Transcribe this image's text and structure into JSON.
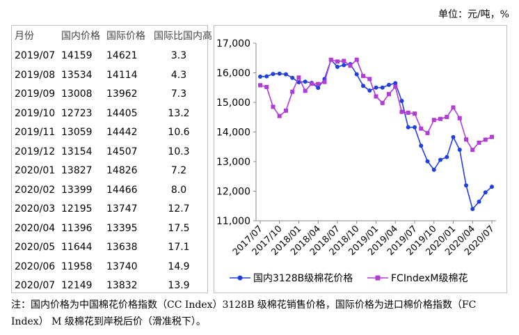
{
  "unit_label": "单位：元/吨，%",
  "table": {
    "headers": [
      "月份",
      "国内价格",
      "国际价格",
      "国际比国内高"
    ],
    "rows": [
      [
        "2019/07",
        "14159",
        "14621",
        "3.3"
      ],
      [
        "2019/08",
        "13534",
        "14114",
        "4.3"
      ],
      [
        "2019/09",
        "13008",
        "13962",
        "7.3"
      ],
      [
        "2019/10",
        "12723",
        "14405",
        "13.2"
      ],
      [
        "2019/11",
        "13059",
        "14442",
        "10.6"
      ],
      [
        "2019/12",
        "13154",
        "14507",
        "10.3"
      ],
      [
        "2020/01",
        "13827",
        "14826",
        "7.2"
      ],
      [
        "2020/02",
        "13399",
        "14466",
        "8.0"
      ],
      [
        "2020/03",
        "12195",
        "13747",
        "12.7"
      ],
      [
        "2020/04",
        "11396",
        "13395",
        "17.5"
      ],
      [
        "2020/05",
        "11644",
        "13638",
        "17.1"
      ],
      [
        "2020/06",
        "11958",
        "13740",
        "14.9"
      ],
      [
        "2020/07",
        "12149",
        "13832",
        "13.9"
      ]
    ]
  },
  "chart_data": {
    "type": "line",
    "x": [
      "2017/07",
      "2017/08",
      "2017/09",
      "2017/10",
      "2017/11",
      "2017/12",
      "2018/01",
      "2018/02",
      "2018/03",
      "2018/04",
      "2018/05",
      "2018/06",
      "2018/07",
      "2018/08",
      "2018/09",
      "2018/10",
      "2018/11",
      "2018/12",
      "2019/01",
      "2019/02",
      "2019/03",
      "2019/04",
      "2019/05",
      "2019/06",
      "2019/07",
      "2019/08",
      "2019/09",
      "2019/10",
      "2019/11",
      "2019/12",
      "2020/01",
      "2020/02",
      "2020/03",
      "2020/04",
      "2020/05",
      "2020/06",
      "2020/07"
    ],
    "xticks": [
      "2017/07",
      "2017/10",
      "2018/01",
      "2018/04",
      "2018/07",
      "2018/10",
      "2019/01",
      "2019/04",
      "2019/07",
      "2019/10",
      "2020/01",
      "2020/04",
      "2020/07"
    ],
    "yticks": [
      "11,000",
      "12,000",
      "13,000",
      "14,000",
      "15,000",
      "16,000",
      "17,000"
    ],
    "ylim": [
      11000,
      17000
    ],
    "series": [
      {
        "name": "国内3128B级棉花价格",
        "color": "#1f3fe0",
        "marker": "circle",
        "values": [
          15870,
          15880,
          15960,
          15970,
          15950,
          15830,
          15680,
          15700,
          15660,
          15490,
          15790,
          16440,
          16200,
          16260,
          16290,
          15950,
          15560,
          15400,
          15500,
          15500,
          15590,
          15650,
          15050,
          14160,
          14159,
          13534,
          13008,
          12723,
          13059,
          13154,
          13827,
          13399,
          12195,
          11396,
          11644,
          11958,
          12149
        ]
      },
      {
        "name": "FCIndexM级棉花",
        "color": "#b23cd6",
        "marker": "square",
        "values": [
          15580,
          15520,
          14850,
          14540,
          14720,
          15360,
          15840,
          15390,
          15630,
          15620,
          15690,
          16440,
          16380,
          16400,
          16240,
          16440,
          15890,
          15790,
          15200,
          14980,
          15280,
          15530,
          14680,
          14650,
          14621,
          14114,
          13962,
          14405,
          14442,
          14507,
          14826,
          14466,
          13747,
          13395,
          13638,
          13740,
          13832
        ]
      }
    ]
  },
  "note": "注：国内价格为中国棉花价格指数（CC Index）3128B 级棉花销售价格，国际价格为进口棉价格指数（FC Index） M 级棉花到岸税后价（滑准税下）。"
}
